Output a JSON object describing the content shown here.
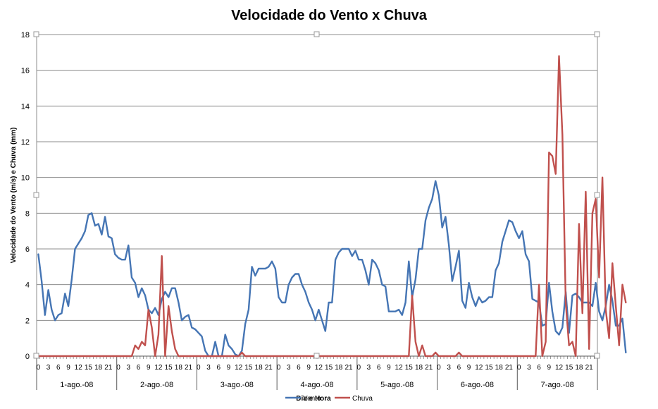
{
  "chart_data": {
    "type": "line",
    "title": "Velocidade do Vento x Chuva",
    "xlabel": "Dia e Hora",
    "ylabel": "Velocidade do Vento (m/s) e Chuva (mm)",
    "ylim": [
      0,
      18
    ],
    "yticks": [
      "0",
      "2",
      "4",
      "6",
      "8",
      "10",
      "12",
      "14",
      "16",
      "18"
    ],
    "grid": true,
    "legend_position": "bottom",
    "days": [
      "1-ago.-08",
      "2-ago.-08",
      "3-ago.-08",
      "4-ago.-08",
      "5-ago.-08",
      "6-ago.-08",
      "7-ago.-08"
    ],
    "hour_labels": [
      "0",
      "3",
      "6",
      "9",
      "12",
      "15",
      "18",
      "21"
    ],
    "x_step_hours": 1,
    "series": [
      {
        "name": "Vento",
        "color": "#4575b4",
        "values": [
          5.7,
          4.2,
          2.3,
          3.7,
          2.6,
          2.0,
          2.3,
          2.4,
          3.5,
          2.8,
          4.3,
          6.0,
          6.3,
          6.6,
          7.0,
          7.9,
          8.0,
          7.3,
          7.4,
          6.8,
          7.8,
          6.7,
          6.6,
          5.7,
          5.5,
          5.4,
          5.4,
          6.2,
          4.4,
          4.1,
          3.3,
          3.8,
          3.4,
          2.6,
          2.4,
          2.7,
          2.3,
          3.2,
          3.6,
          3.3,
          3.8,
          3.8,
          3.0,
          2.0,
          2.2,
          2.3,
          1.6,
          1.5,
          1.3,
          1.1,
          0.3,
          0.0,
          0.0,
          0.8,
          0.0,
          0.0,
          1.2,
          0.6,
          0.4,
          0.1,
          0.0,
          0.3,
          1.8,
          2.6,
          5.0,
          4.5,
          4.9,
          4.9,
          4.9,
          5.0,
          5.3,
          4.9,
          3.3,
          3.0,
          3.0,
          4.0,
          4.4,
          4.6,
          4.6,
          4.0,
          3.6,
          3.0,
          2.6,
          2.0,
          2.6,
          2.0,
          1.4,
          3.0,
          3.0,
          5.4,
          5.8,
          6.0,
          6.0,
          6.0,
          5.6,
          5.9,
          5.4,
          5.4,
          4.8,
          4.0,
          5.4,
          5.2,
          4.8,
          4.0,
          3.9,
          2.5,
          2.5,
          2.5,
          2.6,
          2.3,
          3.0,
          5.3,
          3.3,
          4.3,
          6.0,
          6.0,
          7.6,
          8.3,
          8.8,
          9.8,
          9.0,
          7.2,
          7.8,
          6.2,
          4.2,
          5.0,
          5.9,
          3.1,
          2.7,
          4.1,
          3.3,
          2.8,
          3.3,
          3.0,
          3.1,
          3.3,
          3.3,
          4.8,
          5.2,
          6.4,
          7.0,
          7.6,
          7.5,
          7.0,
          6.6,
          7.0,
          5.7,
          5.3,
          3.2,
          3.1,
          3.0,
          1.7,
          1.8,
          4.1,
          2.5,
          1.4,
          1.2,
          1.6,
          3.6,
          1.3,
          3.4,
          3.5,
          3.3,
          3.0,
          3.0,
          3.0,
          2.8,
          4.1,
          2.5,
          2.0,
          2.8,
          4.0,
          3.1,
          1.7,
          1.7,
          2.1,
          0.2
        ]
      },
      {
        "name": "Chuva",
        "color": "#c0504d",
        "values": [
          0,
          0,
          0,
          0,
          0,
          0,
          0,
          0,
          0,
          0,
          0,
          0,
          0,
          0,
          0,
          0,
          0,
          0,
          0,
          0,
          0,
          0,
          0,
          0,
          0,
          0,
          0,
          0,
          0,
          0.6,
          0.4,
          0.8,
          0.6,
          2.6,
          1.6,
          0,
          1.2,
          5.6,
          0,
          2.8,
          1.4,
          0.4,
          0,
          0,
          0,
          0,
          0,
          0,
          0,
          0,
          0,
          0,
          0,
          0,
          0,
          0,
          0,
          0,
          0,
          0,
          0,
          0.2,
          0,
          0,
          0,
          0,
          0,
          0,
          0,
          0,
          0,
          0,
          0,
          0,
          0,
          0,
          0,
          0,
          0,
          0,
          0,
          0,
          0,
          0,
          0,
          0,
          0,
          0,
          0,
          0,
          0,
          0,
          0,
          0,
          0,
          0,
          0,
          0,
          0,
          0,
          0,
          0,
          0,
          0,
          0,
          0,
          0,
          0,
          0,
          0,
          0,
          0,
          3.4,
          0.8,
          0,
          0.6,
          0,
          0,
          0,
          0.2,
          0,
          0,
          0,
          0,
          0,
          0,
          0.2,
          0,
          0,
          0,
          0,
          0,
          0,
          0,
          0,
          0,
          0,
          0,
          0,
          0,
          0,
          0,
          0,
          0,
          0,
          0,
          0,
          0,
          0,
          0,
          4.0,
          0,
          0.8,
          11.4,
          11.2,
          10.2,
          16.8,
          12.4,
          3.0,
          0.6,
          0.8,
          0,
          7.4,
          2.4,
          9.2,
          0.4,
          8.0,
          8.8,
          4.4,
          10.0,
          2.6,
          1.0,
          5.2,
          2.8,
          0.6,
          4.0,
          3.0
        ]
      }
    ]
  }
}
